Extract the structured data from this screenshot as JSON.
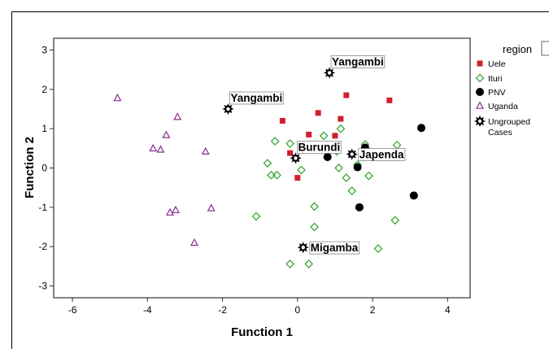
{
  "chart_data": {
    "type": "scatter",
    "title": "",
    "xlabel": "Function 1",
    "ylabel": "Function 2",
    "xlim": [
      -6.5,
      4.6
    ],
    "ylim": [
      -3.3,
      3.3
    ],
    "xticks": [
      "-6",
      "-4",
      "-2",
      "0",
      "2",
      "4"
    ],
    "yticks": [
      "3",
      "2",
      "1",
      "0",
      "-1",
      "-2",
      "-3"
    ],
    "legend": {
      "title": "region",
      "placement": "right-outside",
      "entries": [
        "Uele",
        "Ituri",
        "PNV",
        "Uganda",
        "Ungrouped Cases"
      ]
    },
    "series": [
      {
        "name": "Uele",
        "marker": "square",
        "color": "#d0202e",
        "points": [
          [
            -0.4,
            1.2
          ],
          [
            0.3,
            0.85
          ],
          [
            0.55,
            1.4
          ],
          [
            1.3,
            1.85
          ],
          [
            1.15,
            1.25
          ],
          [
            2.45,
            1.72
          ],
          [
            -0.2,
            0.38
          ],
          [
            0.0,
            -0.25
          ],
          [
            1.0,
            0.82
          ]
        ]
      },
      {
        "name": "Ituri",
        "marker": "diamond",
        "color": "#3aa835",
        "points": [
          [
            -0.8,
            0.12
          ],
          [
            -0.7,
            -0.18
          ],
          [
            -0.55,
            -0.18
          ],
          [
            -0.6,
            0.68
          ],
          [
            -0.2,
            0.62
          ],
          [
            0.1,
            -0.05
          ],
          [
            0.7,
            0.82
          ],
          [
            1.15,
            1.0
          ],
          [
            1.05,
            0.42
          ],
          [
            1.1,
            0.0
          ],
          [
            1.3,
            -0.25
          ],
          [
            1.45,
            -0.58
          ],
          [
            1.6,
            0.08
          ],
          [
            1.8,
            0.6
          ],
          [
            1.9,
            -0.2
          ],
          [
            2.65,
            0.58
          ],
          [
            -1.1,
            -1.23
          ],
          [
            0.45,
            -0.98
          ],
          [
            0.45,
            -1.5
          ],
          [
            0.3,
            -2.44
          ],
          [
            -0.2,
            -2.44
          ],
          [
            2.15,
            -2.05
          ],
          [
            2.6,
            -1.33
          ]
        ]
      },
      {
        "name": "PNV",
        "marker": "circle",
        "color": "#000000",
        "points": [
          [
            0.8,
            0.28
          ],
          [
            1.6,
            0.02
          ],
          [
            1.8,
            0.52
          ],
          [
            3.3,
            1.02
          ],
          [
            3.1,
            -0.7
          ],
          [
            1.65,
            -1.0
          ]
        ]
      },
      {
        "name": "Uganda",
        "marker": "triangle",
        "color": "#8a2d8e",
        "points": [
          [
            -4.8,
            1.78
          ],
          [
            -3.2,
            1.3
          ],
          [
            -3.5,
            0.84
          ],
          [
            -3.85,
            0.5
          ],
          [
            -3.65,
            0.47
          ],
          [
            -2.45,
            0.42
          ],
          [
            -3.4,
            -1.13
          ],
          [
            -3.25,
            -1.07
          ],
          [
            -2.3,
            -1.02
          ],
          [
            -2.75,
            -1.9
          ]
        ]
      },
      {
        "name": "Ungrouped Cases",
        "marker": "star",
        "color": "#000000",
        "points": [
          [
            -1.85,
            1.5
          ],
          [
            0.85,
            2.42
          ],
          [
            -0.05,
            0.25
          ],
          [
            1.45,
            0.35
          ],
          [
            0.15,
            -2.02
          ]
        ]
      }
    ],
    "annotations": [
      {
        "text": "Yangambi",
        "x": -1.85,
        "y": 1.5,
        "anchor": "above-right"
      },
      {
        "text": "Yangambi",
        "x": 0.85,
        "y": 2.42,
        "anchor": "above-right"
      },
      {
        "text": "Burundi",
        "x": -0.05,
        "y": 0.25,
        "anchor": "above-right"
      },
      {
        "text": "Japenda",
        "x": 1.45,
        "y": 0.35,
        "anchor": "right"
      },
      {
        "text": "Migamba",
        "x": 0.15,
        "y": -2.02,
        "anchor": "right"
      }
    ],
    "grid": false
  }
}
